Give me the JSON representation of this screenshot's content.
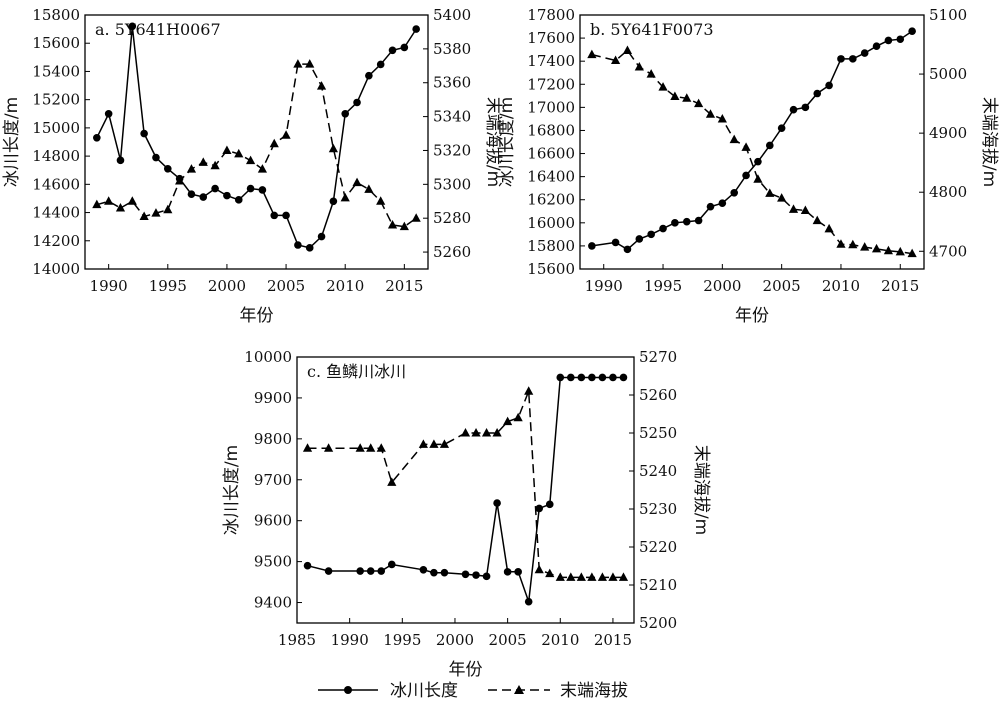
{
  "legend": {
    "length_label": "冰川长度",
    "elevation_label": "末端海拔"
  },
  "chart_data": [
    {
      "type": "line",
      "title": "a. 5Y641H0067",
      "xlabel": "年份",
      "ylabel": "冰川长度/m",
      "y2label": "末端海拔/m",
      "xlim": [
        1988,
        2017
      ],
      "ylim": [
        14000,
        15800
      ],
      "y2lim": [
        5250,
        5400
      ],
      "xticks": [
        1990,
        1995,
        2000,
        2005,
        2010,
        2015
      ],
      "yticks": [
        14000,
        14200,
        14400,
        14600,
        14800,
        15000,
        15200,
        15400,
        15600,
        15800
      ],
      "y2ticks": [
        5260,
        5280,
        5300,
        5320,
        5340,
        5360,
        5380,
        5400
      ],
      "series": [
        {
          "name": "冰川长度",
          "axis": "left",
          "marker": "circle",
          "dash": "solid",
          "x": [
            1989,
            1990,
            1991,
            1992,
            1993,
            1994,
            1995,
            1996,
            1997,
            1998,
            1999,
            2000,
            2001,
            2002,
            2003,
            2004,
            2005,
            2006,
            2007,
            2008,
            2009,
            2010,
            2011,
            2012,
            2013,
            2014,
            2015,
            2016
          ],
          "values": [
            14930,
            15100,
            14770,
            15720,
            14960,
            14790,
            14710,
            14640,
            14530,
            14510,
            14570,
            14520,
            14490,
            14570,
            14560,
            14380,
            14380,
            14170,
            14150,
            14230,
            14480,
            15100,
            15180,
            15370,
            15450,
            15550,
            15570,
            15700
          ]
        },
        {
          "name": "末端海拔",
          "axis": "right",
          "marker": "triangle",
          "dash": "dashed",
          "x": [
            1989,
            1990,
            1991,
            1992,
            1993,
            1994,
            1995,
            1996,
            1997,
            1998,
            1999,
            2000,
            2001,
            2002,
            2003,
            2004,
            2005,
            2006,
            2007,
            2008,
            2009,
            2010,
            2011,
            2012,
            2013,
            2014,
            2015,
            2016
          ],
          "values": [
            5288,
            5290,
            5286,
            5290,
            5281,
            5283,
            5285,
            5302,
            5309,
            5313,
            5311,
            5320,
            5318,
            5314,
            5309,
            5324,
            5329,
            5371,
            5371,
            5358,
            5321,
            5292,
            5301,
            5297,
            5290,
            5276,
            5275,
            5280
          ]
        }
      ]
    },
    {
      "type": "line",
      "title": "b. 5Y641F0073",
      "xlabel": "年份",
      "ylabel": "冰川长度/m",
      "y2label": "末端海拔/m",
      "xlim": [
        1988,
        2017
      ],
      "ylim": [
        15600,
        17800
      ],
      "y2lim": [
        4670,
        5100
      ],
      "xticks": [
        1990,
        1995,
        2000,
        2005,
        2010,
        2015
      ],
      "yticks": [
        15600,
        15800,
        16000,
        16200,
        16400,
        16600,
        16800,
        17000,
        17200,
        17400,
        17600,
        17800
      ],
      "y2ticks": [
        4700,
        4800,
        4900,
        5000,
        5100
      ],
      "series": [
        {
          "name": "冰川长度",
          "axis": "left",
          "marker": "circle",
          "dash": "solid",
          "x": [
            1989,
            1991,
            1992,
            1993,
            1994,
            1995,
            1996,
            1997,
            1998,
            1999,
            2000,
            2001,
            2002,
            2003,
            2004,
            2005,
            2006,
            2007,
            2008,
            2009,
            2010,
            2011,
            2012,
            2013,
            2014,
            2015,
            2016
          ],
          "values": [
            15800,
            15830,
            15770,
            15860,
            15900,
            15950,
            16000,
            16010,
            16020,
            16140,
            16170,
            16260,
            16410,
            16530,
            16670,
            16820,
            16980,
            17000,
            17120,
            17190,
            17420,
            17420,
            17470,
            17530,
            17580,
            17590,
            17660
          ]
        },
        {
          "name": "末端海拔",
          "axis": "right",
          "marker": "triangle",
          "dash": "dashed",
          "x": [
            1989,
            1991,
            1992,
            1993,
            1994,
            1995,
            1996,
            1997,
            1998,
            1999,
            2000,
            2001,
            2002,
            2003,
            2004,
            2005,
            2006,
            2007,
            2008,
            2009,
            2010,
            2011,
            2012,
            2013,
            2014,
            2015,
            2016
          ],
          "values": [
            5033,
            5023,
            5040,
            5012,
            5000,
            4978,
            4962,
            4959,
            4950,
            4932,
            4924,
            4889,
            4876,
            4822,
            4798,
            4790,
            4771,
            4769,
            4752,
            4738,
            4712,
            4711,
            4707,
            4704,
            4701,
            4699,
            4696
          ]
        }
      ]
    },
    {
      "type": "line",
      "title": "c. 鱼鳞川冰川",
      "xlabel": "年份",
      "ylabel": "冰川长度/m",
      "y2label": "末端海拔/m",
      "xlim": [
        1985,
        2017
      ],
      "ylim": [
        9350,
        10000
      ],
      "y2lim": [
        5200,
        5270
      ],
      "xticks": [
        1985,
        1990,
        1995,
        2000,
        2005,
        2010,
        2015
      ],
      "yticks": [
        9400,
        9500,
        9600,
        9700,
        9800,
        9900,
        10000
      ],
      "y2ticks": [
        5200,
        5210,
        5220,
        5230,
        5240,
        5250,
        5260,
        5270
      ],
      "series": [
        {
          "name": "冰川长度",
          "axis": "left",
          "marker": "circle",
          "dash": "solid",
          "x": [
            1986,
            1988,
            1991,
            1992,
            1993,
            1994,
            1997,
            1998,
            1999,
            2001,
            2002,
            2003,
            2004,
            2005,
            2006,
            2007,
            2008,
            2009,
            2010,
            2011,
            2012,
            2013,
            2014,
            2015,
            2016
          ],
          "values": [
            9490,
            9477,
            9477,
            9477,
            9477,
            9493,
            9480,
            9473,
            9473,
            9469,
            9467,
            9464,
            9643,
            9475,
            9475,
            9402,
            9630,
            9640,
            9950,
            9950,
            9950,
            9950,
            9950,
            9950,
            9950
          ]
        },
        {
          "name": "末端海拔",
          "axis": "right",
          "marker": "triangle",
          "dash": "dashed",
          "x": [
            1986,
            1988,
            1991,
            1992,
            1993,
            1994,
            1997,
            1998,
            1999,
            2001,
            2002,
            2003,
            2004,
            2005,
            2006,
            2007,
            2008,
            2009,
            2010,
            2011,
            2012,
            2013,
            2014,
            2015,
            2016
          ],
          "values": [
            5246,
            5246,
            5246,
            5246,
            5246,
            5237,
            5247,
            5247,
            5247,
            5250,
            5250,
            5250,
            5250,
            5253,
            5254,
            5261,
            5214,
            5213,
            5212,
            5212,
            5212,
            5212,
            5212,
            5212,
            5212
          ]
        }
      ]
    }
  ]
}
